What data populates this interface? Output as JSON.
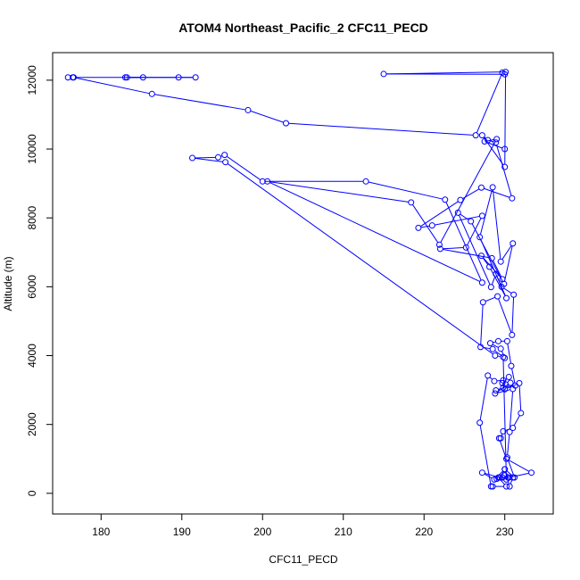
{
  "chart_data": {
    "type": "line",
    "title": "ATOM4 Northeast_Pacific_2 CFC11_PECD",
    "xlabel": "CFC11_PECD",
    "ylabel": "Altitude (m)",
    "xlim": [
      174,
      236
    ],
    "ylim": [
      -600,
      12800
    ],
    "xticks": [
      180,
      190,
      200,
      210,
      220,
      230
    ],
    "yticks": [
      0,
      2000,
      4000,
      6000,
      8000,
      10000,
      12000
    ],
    "grid": false,
    "legend": "none",
    "marker": "open-circle",
    "color": "#0000ff",
    "series": [
      {
        "x": [
          183.0,
          189.6,
          191.7,
          183.2,
          185.2,
          176.5,
          175.9,
          176.6,
          186.3,
          198.2,
          202.9,
          226.4,
          229.7,
          230.0,
          215.0,
          230.1,
          230.0,
          227.2,
          227.9,
          228.9,
          230.9,
          227.1,
          224.5,
          219.3,
          221.0,
          227.2,
          225.2,
          222.0,
          228.4,
          229.7,
          227.1,
          228.1,
          230.2,
          226.9,
          228.5,
          229.5,
          231.0,
          229.9,
          225.8,
          224.2,
          228.3,
          228.9,
          229.6,
          231.1,
          230.9,
          229.1,
          227.3,
          227.0,
          228.5,
          230.0,
          229.5,
          228.2,
          229.2,
          230.3,
          230.8,
          231.3,
          229.8,
          228.9,
          230.0,
          231.8,
          232.0,
          231.0,
          229.8,
          229.5,
          229.3,
          230.2,
          233.3,
          230.5,
          229.7,
          230.4,
          229.2,
          230.2,
          228.5,
          228.3,
          226.9,
          227.9,
          228.7,
          229.8,
          230.1,
          229.7,
          230.5,
          230.7,
          228.8,
          231.0,
          230.6,
          230.3,
          231.2,
          230.0,
          229.4,
          227.2,
          228.7,
          230.0,
          230.6,
          231.0,
          230.0,
          229.0,
          230.2,
          229.8,
          228.8,
          195.4,
          191.3,
          194.5,
          195.3,
          200.0,
          212.8,
          222.6,
          227.2,
          200.6,
          218.4,
          221.9,
          229.0,
          227.5,
          230.0
        ],
        "y": [
          12080,
          12080,
          12080,
          12080,
          12080,
          12080,
          12080,
          12080,
          11600,
          11130,
          10750,
          10400,
          12220,
          12170,
          12180,
          12240,
          9480,
          10400,
          10260,
          10190,
          8570,
          8880,
          8520,
          7710,
          7780,
          8060,
          7140,
          7100,
          6830,
          6220,
          6900,
          6580,
          5670,
          7440,
          8890,
          6730,
          7260,
          6080,
          7900,
          8150,
          5990,
          6370,
          6000,
          5770,
          4600,
          5720,
          5550,
          4250,
          4190,
          3930,
          4200,
          4360,
          4420,
          4420,
          3700,
          3130,
          3070,
          2990,
          3020,
          3200,
          2330,
          1900,
          1800,
          1600,
          1600,
          1000,
          600,
          460,
          460,
          460,
          460,
          200,
          200,
          200,
          2050,
          3420,
          3260,
          3280,
          3160,
          3200,
          3380,
          3210,
          2900,
          3030,
          1780,
          1040,
          460,
          700,
          460,
          600,
          400,
          700,
          200,
          460,
          520,
          420,
          400,
          3960,
          4000,
          9620,
          9740,
          9760,
          9830,
          9060,
          9060,
          8530,
          6120,
          9060,
          8450,
          7220,
          10290,
          10220,
          10000
        ]
      }
    ]
  }
}
